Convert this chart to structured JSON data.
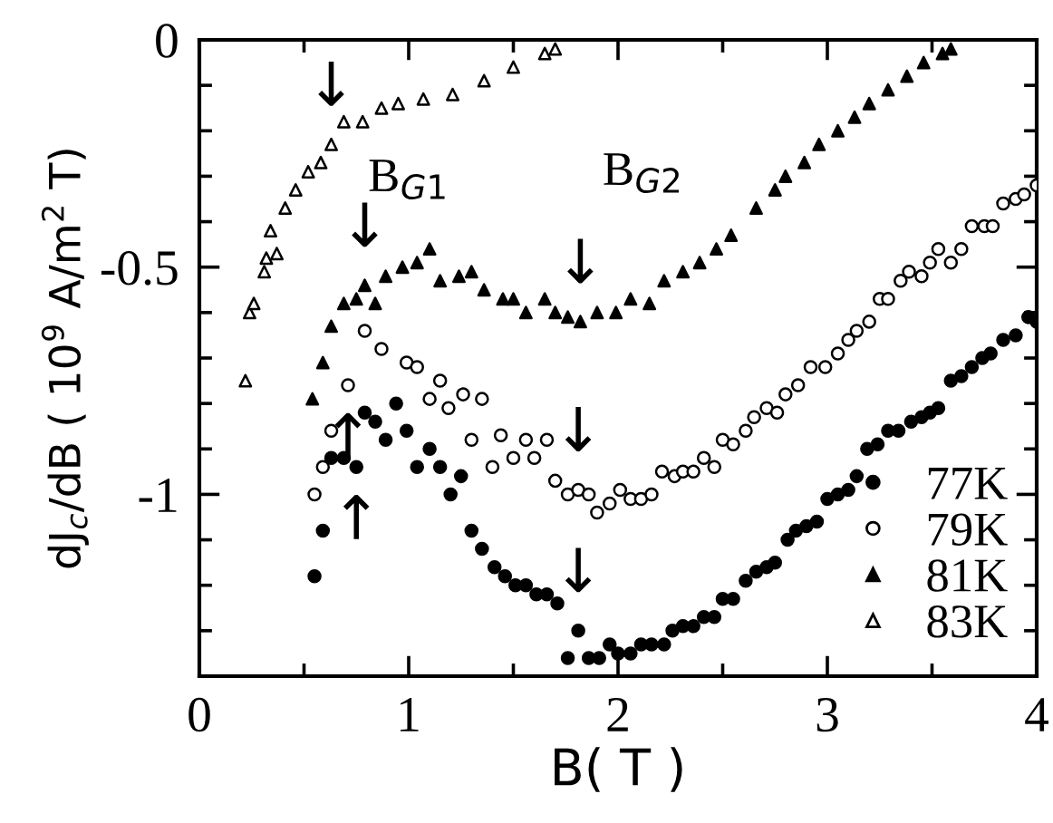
{
  "chart_data": {
    "type": "scatter",
    "xlabel": "B( T )",
    "ylabel": "dJ$_{c}$/dB ( 10$^{9}$ A/m$^{2}$ T)",
    "xlim": [
      0,
      4
    ],
    "ylim": [
      -1.4,
      0
    ],
    "xticks": [
      0,
      {
        "value": 0.5,
        "label": null
      },
      1,
      {
        "value": 1.5,
        "label": null
      },
      2,
      {
        "value": 2.5,
        "label": null
      },
      3,
      {
        "value": 3.5,
        "label": null
      },
      4
    ],
    "yticks": [
      {
        "value": -1.4,
        "label": null
      },
      {
        "value": -1.3,
        "label": null
      },
      {
        "value": -1.2,
        "label": null
      },
      {
        "value": -1.1,
        "label": null
      },
      -1,
      {
        "value": -0.9,
        "label": null
      },
      {
        "value": -0.8,
        "label": null
      },
      {
        "value": -0.7,
        "label": null
      },
      {
        "value": -0.6,
        "label": null
      },
      -0.5,
      {
        "value": -0.4,
        "label": null
      },
      {
        "value": -0.3,
        "label": null
      },
      {
        "value": -0.2,
        "label": null
      },
      {
        "value": -0.1,
        "label": null
      },
      0
    ],
    "grid": false,
    "legend": "bottom right",
    "series": [
      {
        "name": "77K",
        "color": "#000000",
        "marker": "circle",
        "x": [
          0.55,
          0.59,
          0.63,
          0.69,
          0.75,
          0.79,
          0.84,
          0.89,
          0.94,
          0.99,
          1.04,
          1.1,
          1.15,
          1.2,
          1.25,
          1.3,
          1.35,
          1.41,
          1.46,
          1.51,
          1.56,
          1.61,
          1.66,
          1.71,
          1.76,
          1.81,
          1.86,
          1.91,
          1.96,
          2.0,
          2.06,
          2.11,
          2.16,
          2.22,
          2.26,
          2.31,
          2.36,
          2.41,
          2.46,
          2.5,
          2.55,
          2.61,
          2.66,
          2.71,
          2.75,
          2.81,
          2.85,
          2.9,
          2.95,
          3.0,
          3.05,
          3.1,
          3.14,
          3.19,
          3.24,
          3.29,
          3.34,
          3.4,
          3.45,
          3.49,
          3.53,
          3.59,
          3.64,
          3.69,
          3.74,
          3.78,
          3.84,
          3.9,
          3.96,
          4.0
        ],
        "values": [
          -1.18,
          -1.08,
          -0.92,
          -0.92,
          -0.94,
          -0.82,
          -0.84,
          -0.88,
          -0.8,
          -0.86,
          -0.94,
          -0.9,
          -0.94,
          -1.0,
          -0.96,
          -1.08,
          -1.12,
          -1.16,
          -1.18,
          -1.2,
          -1.2,
          -1.22,
          -1.22,
          -1.24,
          -1.36,
          -1.3,
          -1.36,
          -1.36,
          -1.33,
          -1.35,
          -1.35,
          -1.33,
          -1.33,
          -1.33,
          -1.3,
          -1.29,
          -1.29,
          -1.27,
          -1.27,
          -1.23,
          -1.23,
          -1.19,
          -1.17,
          -1.16,
          -1.15,
          -1.1,
          -1.08,
          -1.07,
          -1.06,
          -1.01,
          -1.0,
          -0.99,
          -0.96,
          -0.9,
          -0.89,
          -0.86,
          -0.86,
          -0.84,
          -0.83,
          -0.82,
          -0.81,
          -0.75,
          -0.74,
          -0.72,
          -0.7,
          -0.69,
          -0.66,
          -0.65,
          -0.61,
          -0.62
        ]
      },
      {
        "name": "79K",
        "color": "#ffffff",
        "marker": "circle",
        "x": [
          0.55,
          0.59,
          0.63,
          0.71,
          0.79,
          0.87,
          0.99,
          1.04,
          1.1,
          1.15,
          1.19,
          1.26,
          1.3,
          1.35,
          1.4,
          1.44,
          1.5,
          1.56,
          1.6,
          1.66,
          1.7,
          1.76,
          1.81,
          1.86,
          1.9,
          1.96,
          2.01,
          2.06,
          2.11,
          2.16,
          2.21,
          2.27,
          2.31,
          2.36,
          2.41,
          2.46,
          2.5,
          2.55,
          2.61,
          2.65,
          2.71,
          2.76,
          2.8,
          2.86,
          2.92,
          2.99,
          3.05,
          3.1,
          3.14,
          3.2,
          3.25,
          3.29,
          3.35,
          3.39,
          3.45,
          3.49,
          3.53,
          3.59,
          3.64,
          3.69,
          3.75,
          3.79,
          3.84,
          3.9,
          3.94,
          4.0
        ],
        "values": [
          -1.0,
          -0.94,
          -0.86,
          -0.76,
          -0.64,
          -0.68,
          -0.71,
          -0.72,
          -0.79,
          -0.75,
          -0.81,
          -0.78,
          -0.88,
          -0.79,
          -0.94,
          -0.87,
          -0.92,
          -0.88,
          -0.92,
          -0.88,
          -0.97,
          -1.0,
          -0.99,
          -1.0,
          -1.04,
          -1.02,
          -0.99,
          -1.01,
          -1.01,
          -1.0,
          -0.95,
          -0.96,
          -0.95,
          -0.95,
          -0.92,
          -0.94,
          -0.88,
          -0.89,
          -0.86,
          -0.83,
          -0.81,
          -0.82,
          -0.78,
          -0.76,
          -0.72,
          -0.72,
          -0.69,
          -0.66,
          -0.64,
          -0.62,
          -0.57,
          -0.57,
          -0.53,
          -0.51,
          -0.52,
          -0.49,
          -0.46,
          -0.49,
          -0.46,
          -0.41,
          -0.41,
          -0.41,
          -0.36,
          -0.35,
          -0.34,
          -0.32
        ]
      },
      {
        "name": "81K",
        "color": "#000000",
        "marker": "triangle",
        "x": [
          0.54,
          0.59,
          0.63,
          0.69,
          0.75,
          0.79,
          0.84,
          0.89,
          0.97,
          1.04,
          1.1,
          1.15,
          1.24,
          1.3,
          1.36,
          1.45,
          1.5,
          1.56,
          1.65,
          1.7,
          1.76,
          1.82,
          1.9,
          1.99,
          2.06,
          2.15,
          2.22,
          2.31,
          2.39,
          2.47,
          2.54,
          2.66,
          2.75,
          2.8,
          2.89,
          2.96,
          3.05,
          3.13,
          3.2,
          3.29,
          3.38,
          3.46,
          3.55,
          3.59
        ],
        "values": [
          -0.79,
          -0.71,
          -0.63,
          -0.58,
          -0.57,
          -0.54,
          -0.58,
          -0.52,
          -0.5,
          -0.49,
          -0.46,
          -0.53,
          -0.52,
          -0.51,
          -0.55,
          -0.57,
          -0.57,
          -0.6,
          -0.57,
          -0.6,
          -0.61,
          -0.62,
          -0.6,
          -0.6,
          -0.57,
          -0.58,
          -0.53,
          -0.51,
          -0.49,
          -0.46,
          -0.43,
          -0.37,
          -0.33,
          -0.3,
          -0.27,
          -0.23,
          -0.2,
          -0.17,
          -0.14,
          -0.11,
          -0.08,
          -0.05,
          -0.03,
          -0.02
        ]
      },
      {
        "name": "83K",
        "color": "#ffffff",
        "marker": "triangle",
        "x": [
          0.22,
          0.24,
          0.26,
          0.31,
          0.32,
          0.34,
          0.37,
          0.41,
          0.46,
          0.52,
          0.58,
          0.63,
          0.69,
          0.78,
          0.87,
          0.95,
          1.07,
          1.21,
          1.36,
          1.5,
          1.65,
          1.7
        ],
        "values": [
          -0.75,
          -0.6,
          -0.58,
          -0.51,
          -0.48,
          -0.42,
          -0.47,
          -0.37,
          -0.33,
          -0.29,
          -0.27,
          -0.23,
          -0.18,
          -0.18,
          -0.15,
          -0.14,
          -0.13,
          -0.12,
          -0.09,
          -0.06,
          -0.03,
          -0.02
        ]
      }
    ],
    "annotations": [
      "B$_{G1}$",
      "B$_{G2}$",
      {
        "text": "↓",
        "x": 0.63,
        "y": -0.23
      },
      {
        "text": "↓",
        "x": 0.79,
        "y": -0.54
      },
      {
        "text": "↓",
        "x": 1.82,
        "y": -0.62
      },
      {
        "text": "↓",
        "x": 1.81,
        "y": -0.99
      },
      {
        "text": "↓",
        "x": 1.81,
        "y": -1.3
      },
      {
        "text": "↑",
        "x": 0.71,
        "y": -0.76
      },
      {
        "text": "↑",
        "x": 0.75,
        "y": -0.94
      }
    ]
  }
}
